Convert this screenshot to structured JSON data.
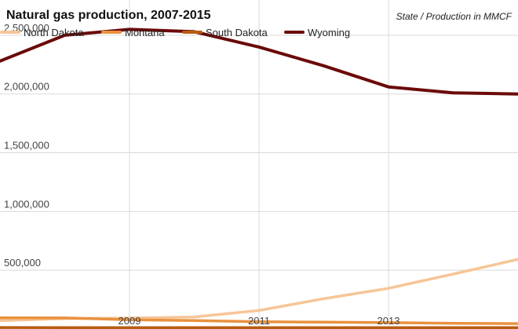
{
  "chart_data": {
    "type": "line",
    "title": "Natural gas production, 2007-2015",
    "subtitle": "State / Production in MMCF",
    "x": [
      2007,
      2008,
      2009,
      2010,
      2011,
      2012,
      2013,
      2014,
      2015
    ],
    "xlim": [
      2007,
      2015
    ],
    "ylim": [
      0,
      2800000
    ],
    "x_tick_values": [
      2009,
      2011,
      2013
    ],
    "x_tick_labels": [
      "2009",
      "2011",
      "2013"
    ],
    "y_tick_values": [
      500000,
      1000000,
      1500000,
      2000000,
      2500000
    ],
    "y_tick_labels": [
      "500,000",
      "1,000,000",
      "1,500,000",
      "2,000,000",
      "2,500,000"
    ],
    "grid": true,
    "legend_position": "top",
    "series": [
      {
        "name": "North Dakota",
        "color": "#f7c597",
        "values": [
          71000,
          88000,
          93000,
          102000,
          158000,
          258000,
          346000,
          468000,
          593000
        ]
      },
      {
        "name": "Montana",
        "color": "#e8923f",
        "values": [
          95000,
          94000,
          79000,
          72000,
          62000,
          58000,
          54000,
          49000,
          46000
        ]
      },
      {
        "name": "South Dakota",
        "color": "#b85c12",
        "values": [
          13000,
          12000,
          12000,
          12000,
          12000,
          12000,
          12000,
          12000,
          12000
        ]
      },
      {
        "name": "Wyoming",
        "color": "#6b0a0a",
        "values": [
          2280000,
          2500000,
          2550000,
          2530000,
          2400000,
          2240000,
          2060000,
          2010000,
          2000000
        ]
      }
    ]
  }
}
